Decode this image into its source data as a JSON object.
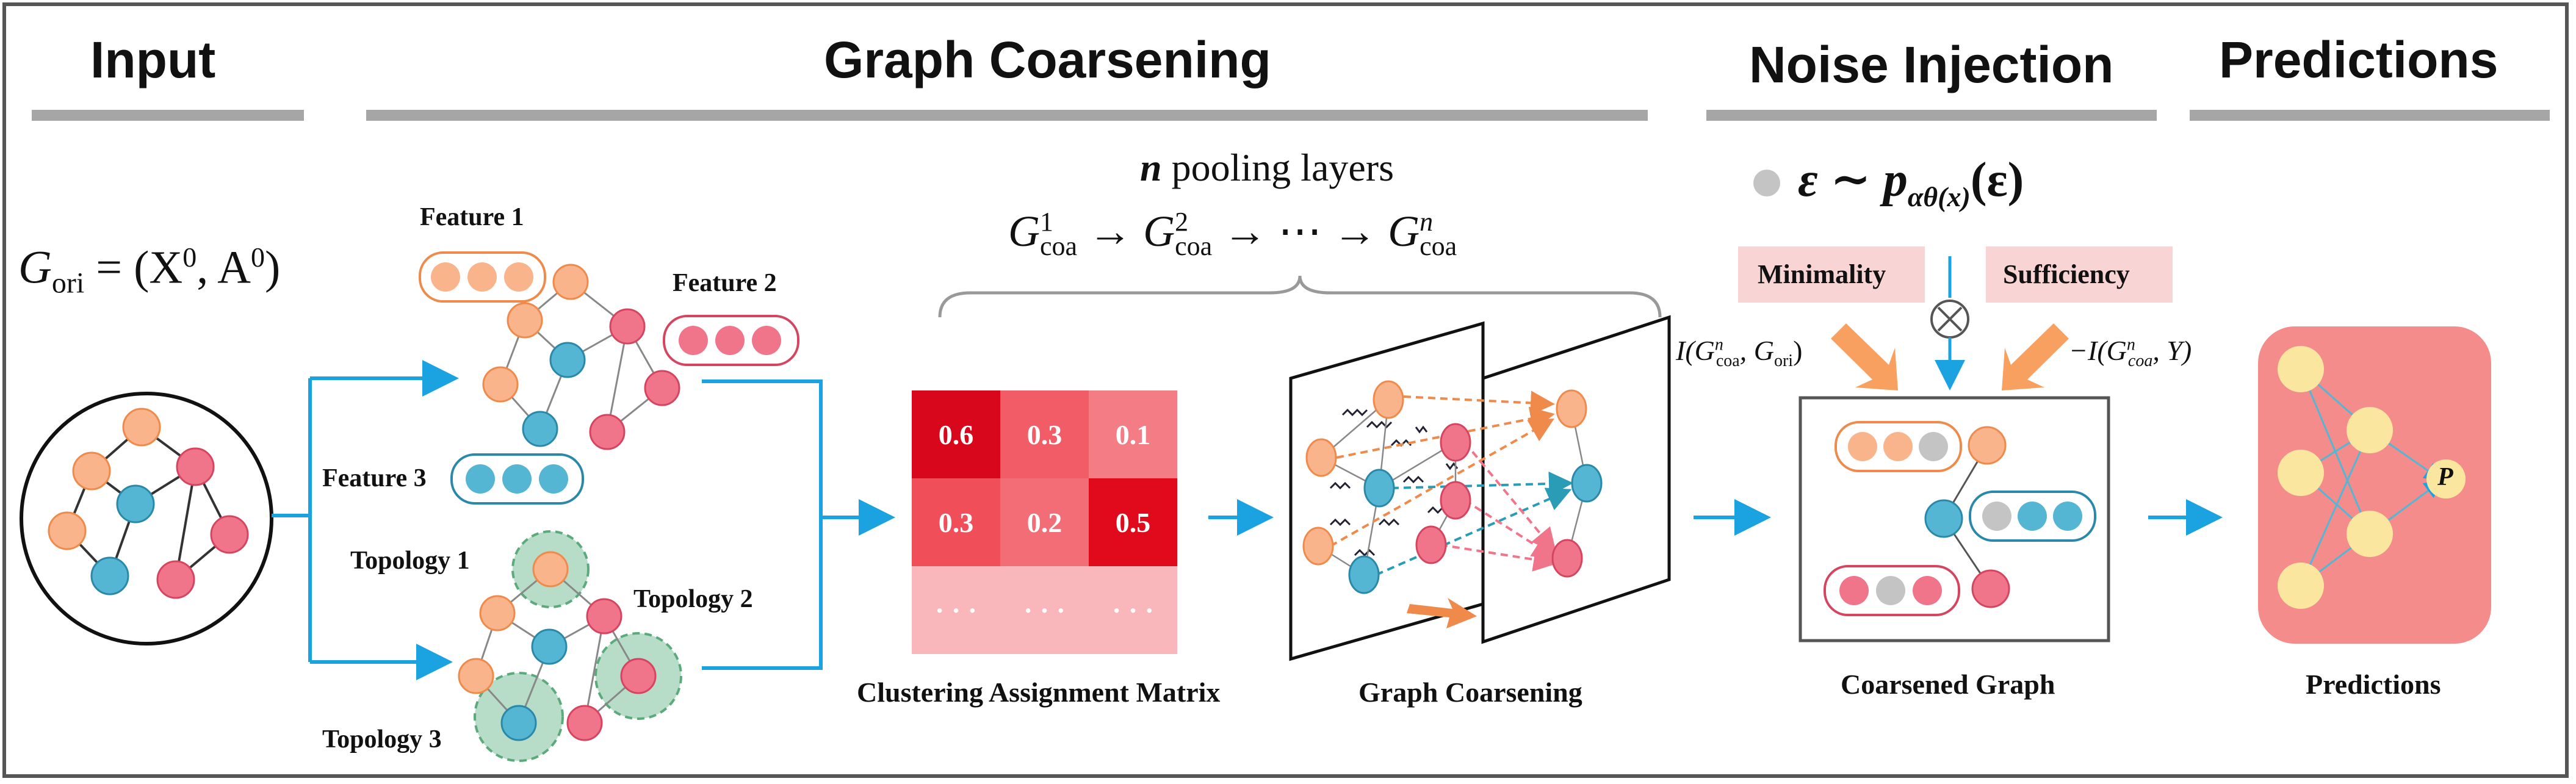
{
  "sections": {
    "input": "Input",
    "coarsening": "Graph Coarsening",
    "noise": "Noise Injection",
    "predictions": "Predictions"
  },
  "input_formula": {
    "G": "G",
    "sub": "ori",
    "rest": "= (X",
    "sup1": "0",
    "mid": ", A",
    "sup2": "0",
    "end": ")"
  },
  "feature_labels": [
    "Feature 1",
    "Feature 2",
    "Feature 3"
  ],
  "topology_labels": [
    "Topology 1",
    "Topology 2",
    "Topology 3"
  ],
  "pooling": {
    "n": "n",
    "text": "pooling layers",
    "G": "G",
    "sub": "coa",
    "sup1": "1",
    "sup2": "2",
    "supn": "n",
    "arrow": "→",
    "dots": "→ ⋯ →"
  },
  "matrix": {
    "rows": [
      [
        "0.6",
        "0.3",
        "0.1"
      ],
      [
        "0.3",
        "0.2",
        "0.5"
      ],
      [
        "· · ·",
        "· · ·",
        "· · ·"
      ]
    ],
    "colors": [
      [
        "#d9071c",
        "#f25c66",
        "#f47d85"
      ],
      [
        "#f04f5a",
        "#f36d76",
        "#e00a1c"
      ],
      [
        "#f9b6bb",
        "#f9b6bb",
        "#f9b6bb"
      ]
    ],
    "caption": "Clustering Assignment Matrix"
  },
  "coarsen_caption": "Graph Coarsening",
  "noise": {
    "eps": "ε ∼ p",
    "sub": "αθ(x)",
    "arg": "(ε)",
    "minimality": "Minimality",
    "sufficiency": "Sufficiency",
    "mi_left": "I(G",
    "mi_left_sup": "n",
    "mi_left_sub": "coa",
    "mi_left_end": ", G",
    "mi_left_sub2": "ori",
    "mi_left_close": ")",
    "mi_right": "−I(G",
    "mi_right_sup": "n",
    "mi_right_sub": "coa",
    "mi_right_end": ", Y)",
    "caption": "Coarsened Graph"
  },
  "predictions": {
    "node": "P",
    "caption": "Predictions"
  },
  "colors": {
    "orange": "#f9b48c",
    "orange_stroke": "#f08a4b",
    "pink": "#f0758a",
    "pink_stroke": "#d64560",
    "blue": "#55b6d4",
    "blue_stroke": "#2a88a8",
    "arrow": "#1aa3e0",
    "green": "#b7dcc7"
  }
}
